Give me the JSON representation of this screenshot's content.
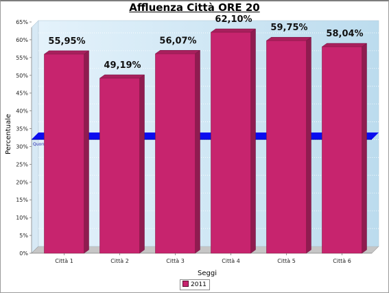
{
  "chart_data": {
    "type": "bar",
    "title": "Affluenza Città ORE 20",
    "xlabel": "Seggi",
    "ylabel": "Percentuale",
    "categories": [
      "Città 1",
      "Città 2",
      "Città 3",
      "Città 4",
      "Città 5",
      "Città 6"
    ],
    "series": [
      {
        "name": "2011",
        "values": [
          55.95,
          49.19,
          56.07,
          62.1,
          59.75,
          58.04
        ]
      }
    ],
    "data_labels": [
      "55,95%",
      "49,19%",
      "56,07%",
      "62,10%",
      "59,75%",
      "58,04%"
    ],
    "ylim": [
      0,
      65
    ],
    "yticks": [
      0,
      5,
      10,
      15,
      20,
      25,
      30,
      35,
      40,
      45,
      50,
      55,
      60,
      65
    ],
    "ytick_labels": [
      "0%",
      "5%",
      "10%",
      "15%",
      "20%",
      "25%",
      "30%",
      "35%",
      "40%",
      "45%",
      "50%",
      "55%",
      "60%",
      "65%"
    ],
    "threshold": {
      "label": "Quorum (32%)",
      "value": 32
    },
    "grid": true,
    "legend_position": "bottom",
    "colors": {
      "bar": "#c7246e",
      "threshold": "#0000ee",
      "plot_bg_from": "#e4f2fb",
      "plot_bg_to": "#bcdcee"
    }
  }
}
